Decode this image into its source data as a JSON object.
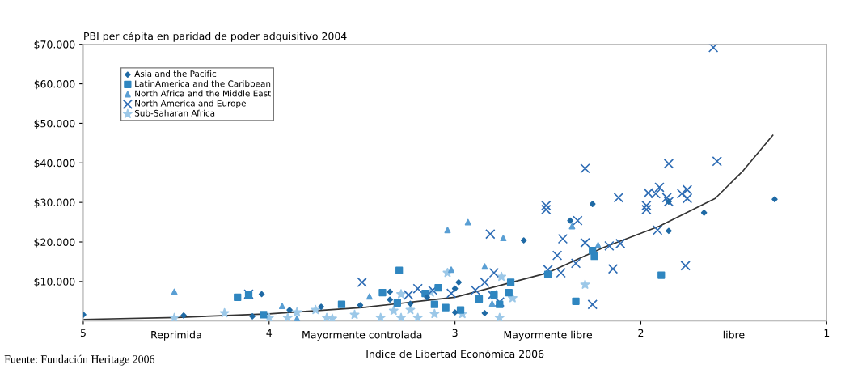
{
  "chart_data": {
    "type": "scatter",
    "title": "PBI per cápita en paridad de poder adquisitivo 2004",
    "xlabel": "Indice de Libertad Económica 2006",
    "xlim": [
      5,
      1
    ],
    "xticks": [
      5,
      4,
      3,
      2,
      1
    ],
    "ylim": [
      0,
      70000
    ],
    "yticks": [
      {
        "value": 10000,
        "label": "$10.000"
      },
      {
        "value": 20000,
        "label": "$20.000"
      },
      {
        "value": 30000,
        "label": "$30.000"
      },
      {
        "value": 40000,
        "label": "$40.000"
      },
      {
        "value": 50000,
        "label": "$50.000"
      },
      {
        "value": 60000,
        "label": "$60.000"
      },
      {
        "value": 70000,
        "label": "$70.000"
      }
    ],
    "grid": false,
    "legend": "top left",
    "annotations": [
      "Reprimida",
      "Mayormente controlada",
      "Mayormente libre",
      "libre",
      "Fuente: Fundación Heritage 2006"
    ],
    "series": [
      {
        "name": "Asia and the Pacific",
        "color": "#1f6aa5",
        "marker": "diamond",
        "x": [
          5.0,
          4.46,
          4.04,
          4.09,
          3.89,
          3.72,
          3.51,
          3.35,
          3.35,
          3.24,
          3.15,
          2.98,
          3.0,
          3.0,
          2.84,
          2.63,
          2.38,
          2.26,
          1.85,
          1.66,
          1.85,
          1.28
        ],
        "values": [
          1600,
          1400,
          6800,
          1200,
          2800,
          3600,
          4000,
          7400,
          5400,
          4400,
          6000,
          9800,
          8200,
          2200,
          2000,
          20400,
          25400,
          29600,
          30200,
          27400,
          22800,
          30800
        ]
      },
      {
        "name": "LatinAmerica and the Caribbean",
        "color": "#2f86c0",
        "marker": "square",
        "x": [
          4.17,
          4.11,
          4.03,
          3.3,
          3.39,
          3.61,
          3.31,
          3.11,
          3.09,
          3.16,
          3.05,
          2.87,
          2.7,
          2.71,
          2.76,
          2.97,
          2.79,
          2.5,
          2.35,
          2.26,
          2.25,
          1.89
        ],
        "values": [
          6000,
          6600,
          1600,
          12800,
          7200,
          4200,
          4600,
          4200,
          8400,
          7000,
          3400,
          5600,
          9800,
          7200,
          4200,
          2800,
          6600,
          11800,
          5000,
          17800,
          16400,
          11600
        ]
      },
      {
        "name": "North Africa and the Middle East",
        "color": "#5a9fd4",
        "marker": "triangle",
        "x": [
          4.51,
          3.93,
          3.85,
          3.04,
          2.93,
          2.74,
          3.02,
          2.84,
          3.46,
          2.37,
          2.23,
          2.8
        ],
        "values": [
          7400,
          3800,
          600,
          23000,
          25000,
          21000,
          13000,
          13800,
          6200,
          24000,
          19200,
          4400
        ]
      },
      {
        "name": "North America and Europe",
        "color": "#2f6db5",
        "marker": "cross",
        "x": [
          4.11,
          3.5,
          3.25,
          3.2,
          3.12,
          3.02,
          2.89,
          2.84,
          2.81,
          2.79,
          2.8,
          2.76,
          2.51,
          2.51,
          2.34,
          2.3,
          2.42,
          2.45,
          2.5,
          2.43,
          2.35,
          2.3,
          2.17,
          2.11,
          2.15,
          2.26,
          2.12,
          1.97,
          1.97,
          1.61,
          1.85,
          1.59,
          1.96,
          1.9,
          1.92,
          1.86,
          1.85,
          1.78,
          1.75,
          1.75,
          1.91,
          1.76
        ],
        "values": [
          6800,
          9800,
          6600,
          8200,
          7800,
          7000,
          7800,
          9800,
          22000,
          12200,
          6600,
          4800,
          29200,
          28200,
          25400,
          38600,
          20800,
          16600,
          13000,
          12200,
          14600,
          19800,
          19000,
          19600,
          13200,
          4200,
          31200,
          29200,
          28200,
          69200,
          39800,
          40400,
          32400,
          33800,
          32200,
          31200,
          30200,
          32200,
          33200,
          31000,
          23000,
          14000
        ]
      },
      {
        "name": "Sub-Saharan Africa",
        "color": "#9cc8e8",
        "marker": "star",
        "x": [
          4.51,
          4.24,
          4.0,
          3.9,
          3.85,
          3.75,
          3.69,
          3.66,
          3.54,
          3.4,
          3.29,
          3.2,
          3.11,
          3.04,
          3.29,
          3.13,
          2.96,
          2.75,
          2.69,
          2.76,
          3.33,
          3.24,
          2.3
        ],
        "values": [
          800,
          2000,
          800,
          800,
          2200,
          2800,
          800,
          600,
          1600,
          800,
          800,
          800,
          1800,
          12200,
          6800,
          7200,
          1800,
          11200,
          5800,
          800,
          2600,
          2800,
          9200
        ]
      },
      {
        "type": "line",
        "color": "#333333",
        "line_style": "solid",
        "x": [
          5,
          4.5,
          4,
          3.5,
          3,
          2.5,
          2.2,
          1.9,
          1.6,
          1.45,
          1.29
        ],
        "values": [
          400,
          900,
          1800,
          3400,
          6000,
          12200,
          18600,
          24000,
          31000,
          38000,
          47000
        ]
      }
    ]
  }
}
